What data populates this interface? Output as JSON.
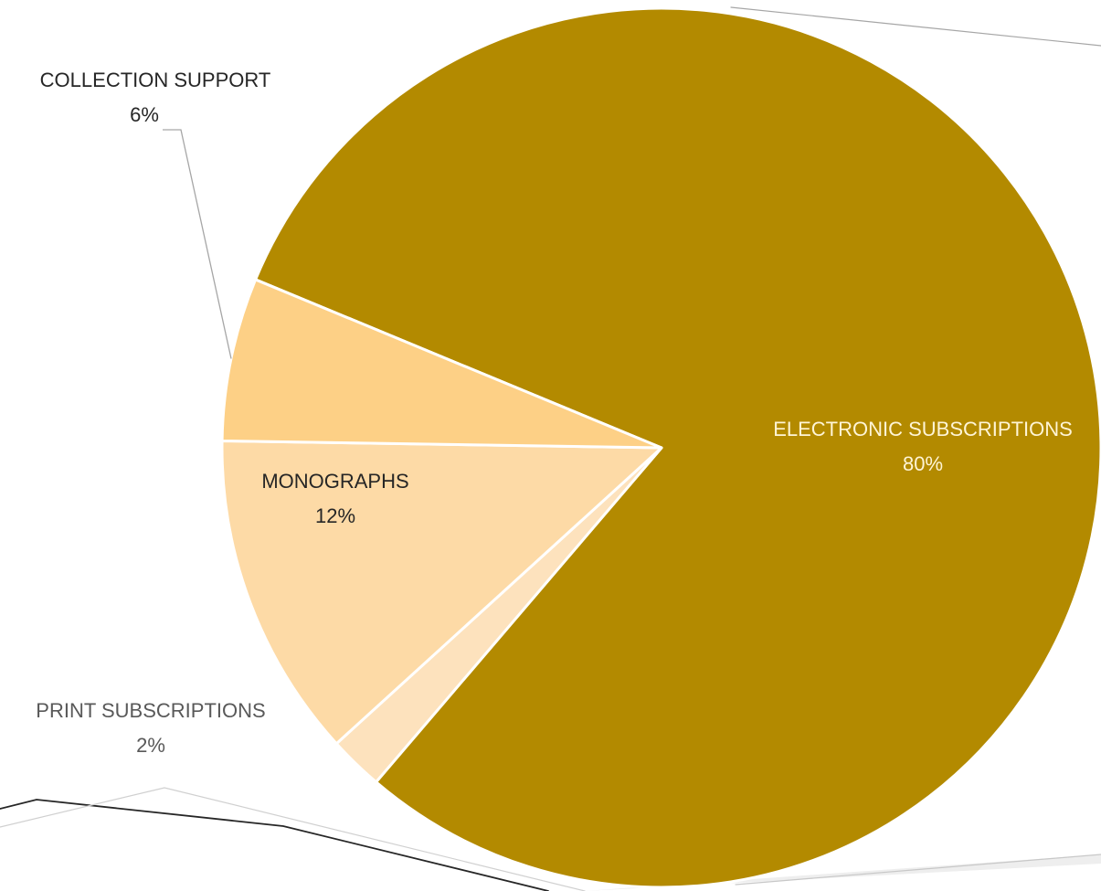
{
  "chart_data": {
    "type": "pie",
    "title": "",
    "start_angle_deg": 292.5,
    "slices": [
      {
        "label": "ELECTRONIC SUBSCRIPTIONS",
        "percent_text": "80%",
        "value": 80,
        "color": "#B38A00",
        "label_color": "#FFF5D6"
      },
      {
        "label": "PRINT SUBSCRIPTIONS",
        "percent_text": "2%",
        "value": 2,
        "color": "#FDE2BD",
        "label_color": "#595959"
      },
      {
        "label": "MONOGRAPHS",
        "percent_text": "12%",
        "value": 12,
        "color": "#FDDAA6",
        "label_color": "#262626"
      },
      {
        "label": "COLLECTION SUPPORT",
        "percent_text": "6%",
        "value": 6,
        "color": "#FDD086",
        "label_color": "#262626"
      }
    ],
    "legend": "none",
    "slice_separator_color": "#FFFFFF"
  }
}
